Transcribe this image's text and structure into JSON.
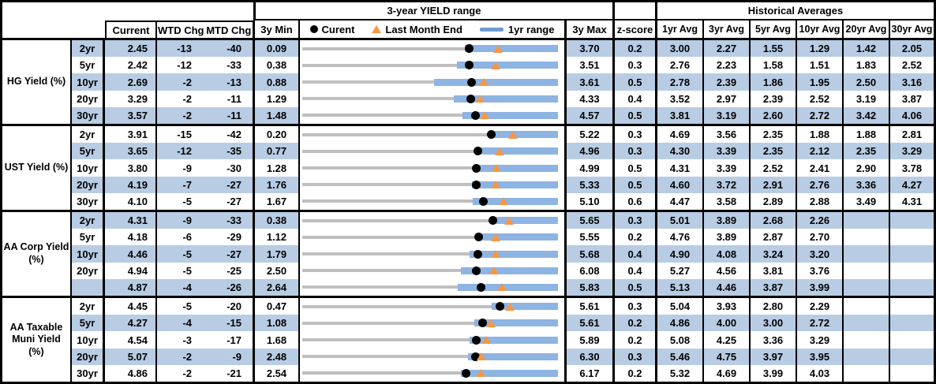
{
  "headers": {
    "historical": "Historical Averages",
    "current": "Current",
    "wtd": "WTD Chg",
    "mtd": "MTD Chg",
    "min": "3y Min",
    "max": "3y Max",
    "z": "z-score",
    "avgs": [
      "1yr Avg",
      "3yr Avg",
      "5yr Avg",
      "10yr Avg",
      "20yr Avg",
      "30yr Avg"
    ]
  },
  "legend": {
    "current": "Curent",
    "last_month": "Last Month End",
    "range": "1yr range"
  },
  "colors": {
    "stripe": "#b8cce4",
    "bar_blue": "#8db4e2",
    "track_gray": "#bfbfbf",
    "triangle_orange": "#f79646",
    "dot_black": "#000000"
  },
  "chart_data": {
    "type": "dot-range",
    "title": "3-year YIELD range",
    "note": "Per row: gray track spans 3y Min to 3y Max, blue bar is the 1yr range (high end at 3y Max), black dot is Current, orange triangle is Last Month End (Current minus MTD change in bp). lo/lm are values estimated from the plot.",
    "groups": [
      {
        "label_lines": [
          "HG Yield (%)"
        ],
        "rows": [
          {
            "tenor": "2yr",
            "current": "2.45",
            "wtd": "-13",
            "mtd": "-40",
            "min": "0.09",
            "max": "3.70",
            "z": "0.2",
            "lm": 2.85,
            "lo": 2.39,
            "avgs": [
              "3.00",
              "2.27",
              "1.55",
              "1.29",
              "1.42",
              "2.05"
            ]
          },
          {
            "tenor": "5yr",
            "current": "2.42",
            "wtd": "-12",
            "mtd": "-33",
            "min": "0.38",
            "max": "3.51",
            "z": "0.3",
            "lm": 2.75,
            "lo": 2.27,
            "avgs": [
              "2.76",
              "2.23",
              "1.58",
              "1.51",
              "1.83",
              "2.52"
            ]
          },
          {
            "tenor": "10yr",
            "current": "2.69",
            "wtd": "-2",
            "mtd": "-13",
            "min": "0.88",
            "max": "3.61",
            "z": "0.5",
            "lm": 2.82,
            "lo": 2.29,
            "avgs": [
              "2.78",
              "2.39",
              "1.86",
              "1.95",
              "2.50",
              "3.16"
            ]
          },
          {
            "tenor": "20yr",
            "current": "3.29",
            "wtd": "-2",
            "mtd": "-11",
            "min": "1.29",
            "max": "4.33",
            "z": "0.4",
            "lm": 3.4,
            "lo": 3.09,
            "avgs": [
              "3.52",
              "2.97",
              "2.39",
              "2.52",
              "3.19",
              "3.87"
            ]
          },
          {
            "tenor": "30yr",
            "current": "3.57",
            "wtd": "-2",
            "mtd": "-11",
            "min": "1.48",
            "max": "4.57",
            "z": "0.5",
            "lm": 3.68,
            "lo": 3.42,
            "avgs": [
              "3.81",
              "3.19",
              "2.60",
              "2.72",
              "3.42",
              "4.06"
            ]
          }
        ]
      },
      {
        "label_lines": [
          "UST Yield (%)"
        ],
        "rows": [
          {
            "tenor": "2yr",
            "current": "3.91",
            "wtd": "-15",
            "mtd": "-42",
            "min": "0.20",
            "max": "5.22",
            "z": "0.3",
            "lm": 4.33,
            "lo": 3.85,
            "avgs": [
              "4.69",
              "3.56",
              "2.35",
              "1.88",
              "1.88",
              "2.81"
            ]
          },
          {
            "tenor": "5yr",
            "current": "3.65",
            "wtd": "-12",
            "mtd": "-35",
            "min": "0.77",
            "max": "4.96",
            "z": "0.3",
            "lm": 4.0,
            "lo": 3.62,
            "avgs": [
              "4.30",
              "3.39",
              "2.35",
              "2.12",
              "2.35",
              "3.29"
            ]
          },
          {
            "tenor": "10yr",
            "current": "3.80",
            "wtd": "-9",
            "mtd": "-30",
            "min": "1.28",
            "max": "4.99",
            "z": "0.5",
            "lm": 4.1,
            "lo": 3.78,
            "avgs": [
              "4.31",
              "3.39",
              "2.52",
              "2.41",
              "2.90",
              "3.78"
            ]
          },
          {
            "tenor": "20yr",
            "current": "4.19",
            "wtd": "-7",
            "mtd": "-27",
            "min": "1.76",
            "max": "5.33",
            "z": "0.5",
            "lm": 4.46,
            "lo": 4.13,
            "avgs": [
              "4.60",
              "3.72",
              "2.91",
              "2.76",
              "3.36",
              "4.27"
            ]
          },
          {
            "tenor": "30yr",
            "current": "4.10",
            "wtd": "-5",
            "mtd": "-27",
            "min": "1.67",
            "max": "5.10",
            "z": "0.6",
            "lm": 4.37,
            "lo": 3.96,
            "avgs": [
              "4.47",
              "3.58",
              "2.89",
              "2.88",
              "3.49",
              "4.31"
            ]
          }
        ]
      },
      {
        "label_lines": [
          "AA Corp Yield",
          "(%)"
        ],
        "rows": [
          {
            "tenor": "2yr",
            "current": "4.31",
            "wtd": "-9",
            "mtd": "-33",
            "min": "0.38",
            "max": "5.65",
            "z": "0.3",
            "lm": 4.64,
            "lo": 4.28,
            "avgs": [
              "5.01",
              "3.89",
              "2.68",
              "2.26",
              "",
              ""
            ]
          },
          {
            "tenor": "5yr",
            "current": "4.18",
            "wtd": "-6",
            "mtd": "-29",
            "min": "1.12",
            "max": "5.55",
            "z": "0.2",
            "lm": 4.47,
            "lo": 4.14,
            "avgs": [
              "4.76",
              "3.89",
              "2.87",
              "2.70",
              "",
              ""
            ]
          },
          {
            "tenor": "10yr",
            "current": "4.46",
            "wtd": "-5",
            "mtd": "-27",
            "min": "1.79",
            "max": "5.68",
            "z": "0.4",
            "lm": 4.73,
            "lo": 4.34,
            "avgs": [
              "4.90",
              "4.08",
              "3.24",
              "3.20",
              "",
              ""
            ]
          },
          {
            "tenor": "20yr",
            "current": "4.94",
            "wtd": "-5",
            "mtd": "-25",
            "min": "2.50",
            "max": "6.08",
            "z": "0.4",
            "lm": 5.19,
            "lo": 4.72,
            "avgs": [
              "5.27",
              "4.56",
              "3.81",
              "3.76",
              "",
              ""
            ]
          },
          {
            "tenor": "",
            "current": "4.87",
            "wtd": "-4",
            "mtd": "-26",
            "min": "2.64",
            "max": "5.83",
            "z": "0.5",
            "lm": 5.13,
            "lo": 4.58,
            "avgs": [
              "5.13",
              "4.46",
              "3.87",
              "3.99",
              "",
              ""
            ]
          }
        ]
      },
      {
        "label_lines": [
          "AA Taxable",
          "Muni Yield",
          "(%)"
        ],
        "rows": [
          {
            "tenor": "2yr",
            "current": "4.45",
            "wtd": "-5",
            "mtd": "-20",
            "min": "0.47",
            "max": "5.61",
            "z": "0.3",
            "lm": 4.65,
            "lo": 4.27,
            "avgs": [
              "5.04",
              "3.93",
              "2.80",
              "2.29",
              "",
              ""
            ]
          },
          {
            "tenor": "5yr",
            "current": "4.27",
            "wtd": "-4",
            "mtd": "-15",
            "min": "1.08",
            "max": "5.61",
            "z": "0.2",
            "lm": 4.42,
            "lo": 4.13,
            "avgs": [
              "4.86",
              "4.00",
              "3.00",
              "2.72",
              "",
              ""
            ]
          },
          {
            "tenor": "10yr",
            "current": "4.54",
            "wtd": "-3",
            "mtd": "-17",
            "min": "1.68",
            "max": "5.89",
            "z": "0.2",
            "lm": 4.71,
            "lo": 4.44,
            "avgs": [
              "5.08",
              "4.25",
              "3.36",
              "3.29",
              "",
              ""
            ]
          },
          {
            "tenor": "20yr",
            "current": "5.07",
            "wtd": "-2",
            "mtd": "-9",
            "min": "2.48",
            "max": "6.30",
            "z": "0.3",
            "lm": 5.16,
            "lo": 4.96,
            "avgs": [
              "5.46",
              "4.75",
              "3.97",
              "3.95",
              "",
              ""
            ]
          },
          {
            "tenor": "30yr",
            "current": "4.86",
            "wtd": "-2",
            "mtd": "-21",
            "min": "2.54",
            "max": "6.17",
            "z": "0.2",
            "lm": 5.07,
            "lo": 4.79,
            "avgs": [
              "5.32",
              "4.69",
              "3.99",
              "4.03",
              "",
              ""
            ]
          }
        ]
      }
    ]
  }
}
